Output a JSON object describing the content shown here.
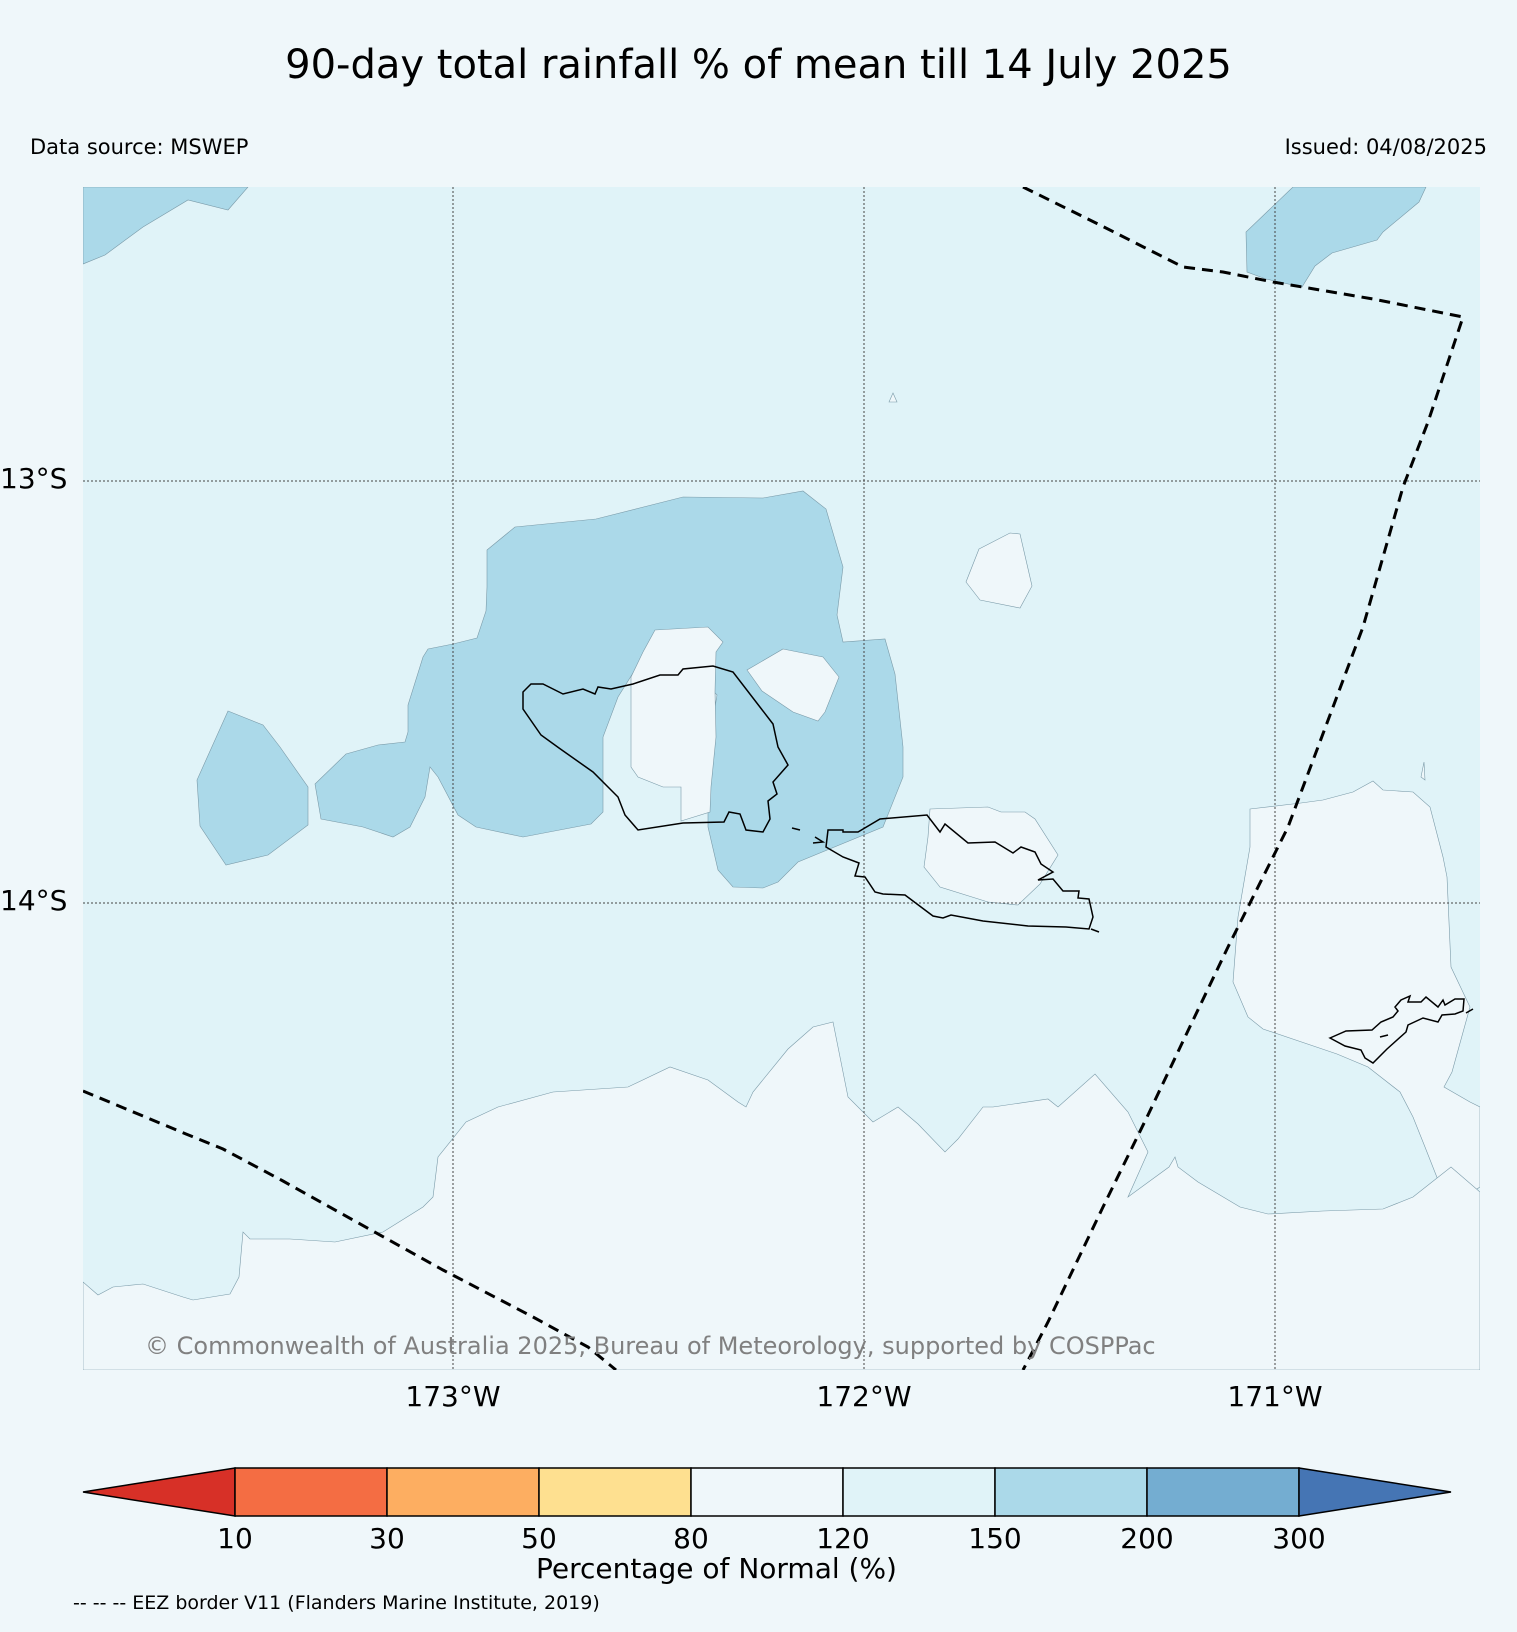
{
  "title": "90-day total rainfall % of mean till 14 July 2025",
  "data_source": "Data source: MSWEP",
  "issued": "Issued: 04/08/2025",
  "copyright": "© Commonwealth of Australia 2025, Bureau of Meteorology, supported by COSPPac",
  "eez_note": "-- -- -- EEZ border V11 (Flanders Marine Institute, 2019)",
  "map": {
    "latitude_labels": [
      "13°S",
      "14°S"
    ],
    "longitude_labels": [
      "173°W",
      "172°W",
      "171°W"
    ],
    "background_category": "120-150",
    "colors": {
      "80-120": "#eff7fa",
      "120-150": "#e0f3f8",
      "150-200": "#abd9e9",
      "outline": "#000000"
    }
  },
  "colorbar": {
    "label": "Percentage of Normal (%)",
    "ticks": [
      "10",
      "30",
      "50",
      "80",
      "120",
      "150",
      "200",
      "300"
    ],
    "colors": {
      "under": "#d73027",
      "10-30": "#f46d43",
      "30-50": "#fdae61",
      "50-80": "#fee090",
      "80-120": "#eff7fa",
      "120-150": "#e0f3f8",
      "150-200": "#abd9e9",
      "200-300": "#74add1",
      "over": "#4575b4"
    }
  }
}
